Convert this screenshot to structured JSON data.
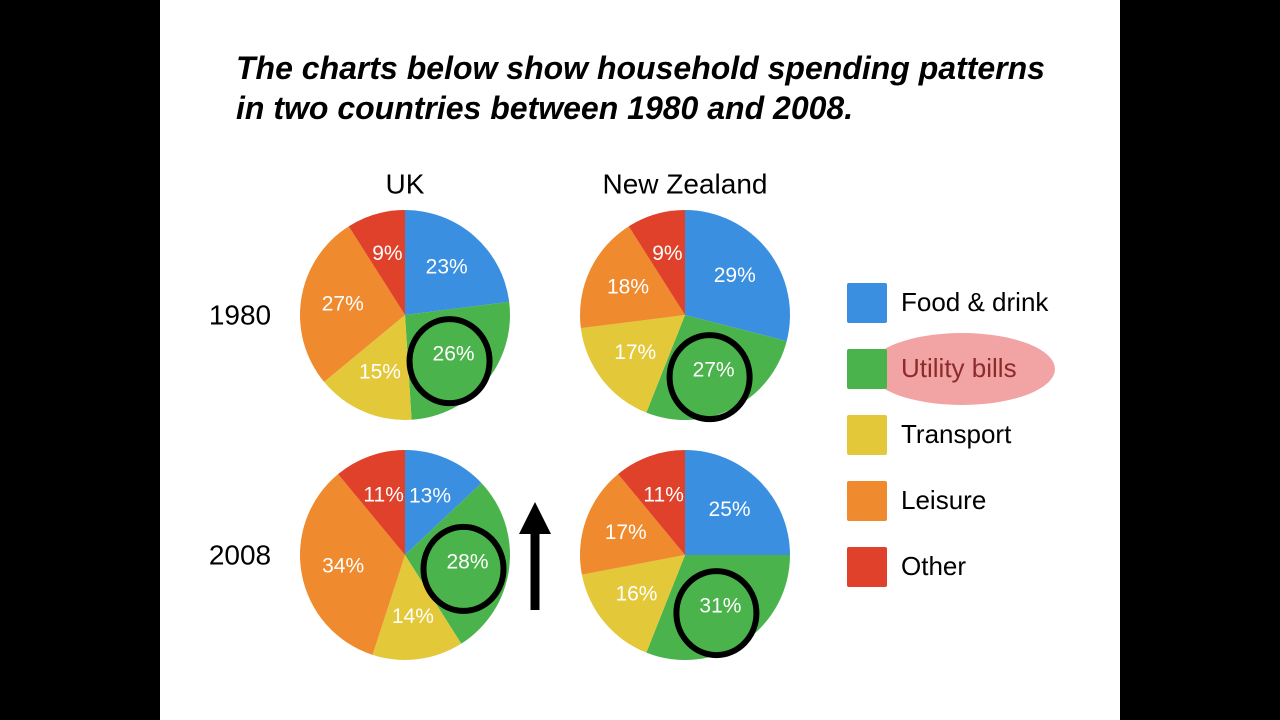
{
  "title": "The charts below show household spending patterns in two countries between 1980 and 2008.",
  "columns": [
    "UK",
    "New Zealand"
  ],
  "rows": [
    "1980",
    "2008"
  ],
  "legend": {
    "labels": [
      "Food & drink",
      "Utility bills",
      "Transport",
      "Leisure",
      "Other"
    ],
    "colors": [
      "#3a8fe0",
      "#4bb34b",
      "#e3c83a",
      "#ef8a2e",
      "#e0412a"
    ]
  },
  "chart_data": [
    {
      "type": "pie",
      "values": [
        23,
        26,
        15,
        27,
        9
      ],
      "value_labels": [
        "23%",
        "26%",
        "15%",
        "27%",
        "9%"
      ]
    },
    {
      "type": "pie",
      "values": [
        29,
        27,
        17,
        18,
        9
      ],
      "value_labels": [
        "29%",
        "27%",
        "17%",
        "18%",
        "9%"
      ]
    },
    {
      "type": "pie",
      "values": [
        13,
        28,
        14,
        34,
        11
      ],
      "value_labels": [
        "13%",
        "28%",
        "14%",
        "34%",
        "11%"
      ]
    },
    {
      "type": "pie",
      "values": [
        25,
        31,
        16,
        17,
        11
      ],
      "value_labels": [
        "25%",
        "31%",
        "16%",
        "17%",
        "11%"
      ]
    }
  ]
}
